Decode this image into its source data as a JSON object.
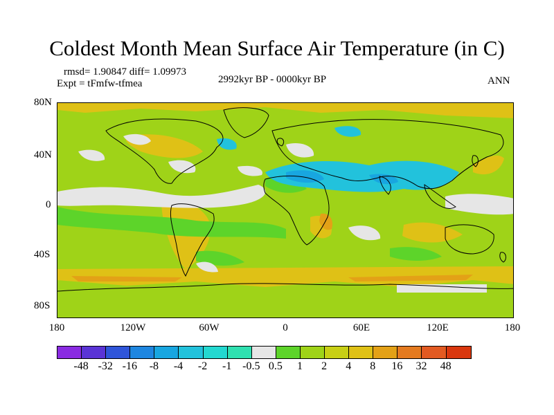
{
  "title": "Coldest Month Mean Surface Air Temperature (in C)",
  "stats": "rmsd= 1.90847 diff= 1.09973",
  "experiment": "Expt = tFmfw-tfmea",
  "period": "2992kyr BP - 0000kyr BP",
  "season": "ANN",
  "y_axis_labels": [
    "80N",
    "40N",
    "0",
    "40S",
    "80S"
  ],
  "x_axis_labels": [
    "180",
    "120W",
    "60W",
    "0",
    "60E",
    "120E",
    "180"
  ],
  "colorbar": {
    "labels": [
      "-48",
      "-32",
      "-16",
      "-8",
      "-4",
      "-2",
      "-1",
      "-0.5",
      "0.5",
      "1",
      "2",
      "4",
      "8",
      "16",
      "32",
      "48"
    ],
    "colors": [
      "#8a2be2",
      "#5a34d6",
      "#2f55d9",
      "#1e86e0",
      "#18a6e0",
      "#22c2dc",
      "#23d8d0",
      "#2fe0b0",
      "#e6e6e6",
      "#5dd42a",
      "#9fd318",
      "#c8cf15",
      "#dfc116",
      "#e3a117",
      "#e47a1f",
      "#e25a22",
      "#d9370e"
    ]
  },
  "map": {
    "background_color": "#9fd318"
  }
}
